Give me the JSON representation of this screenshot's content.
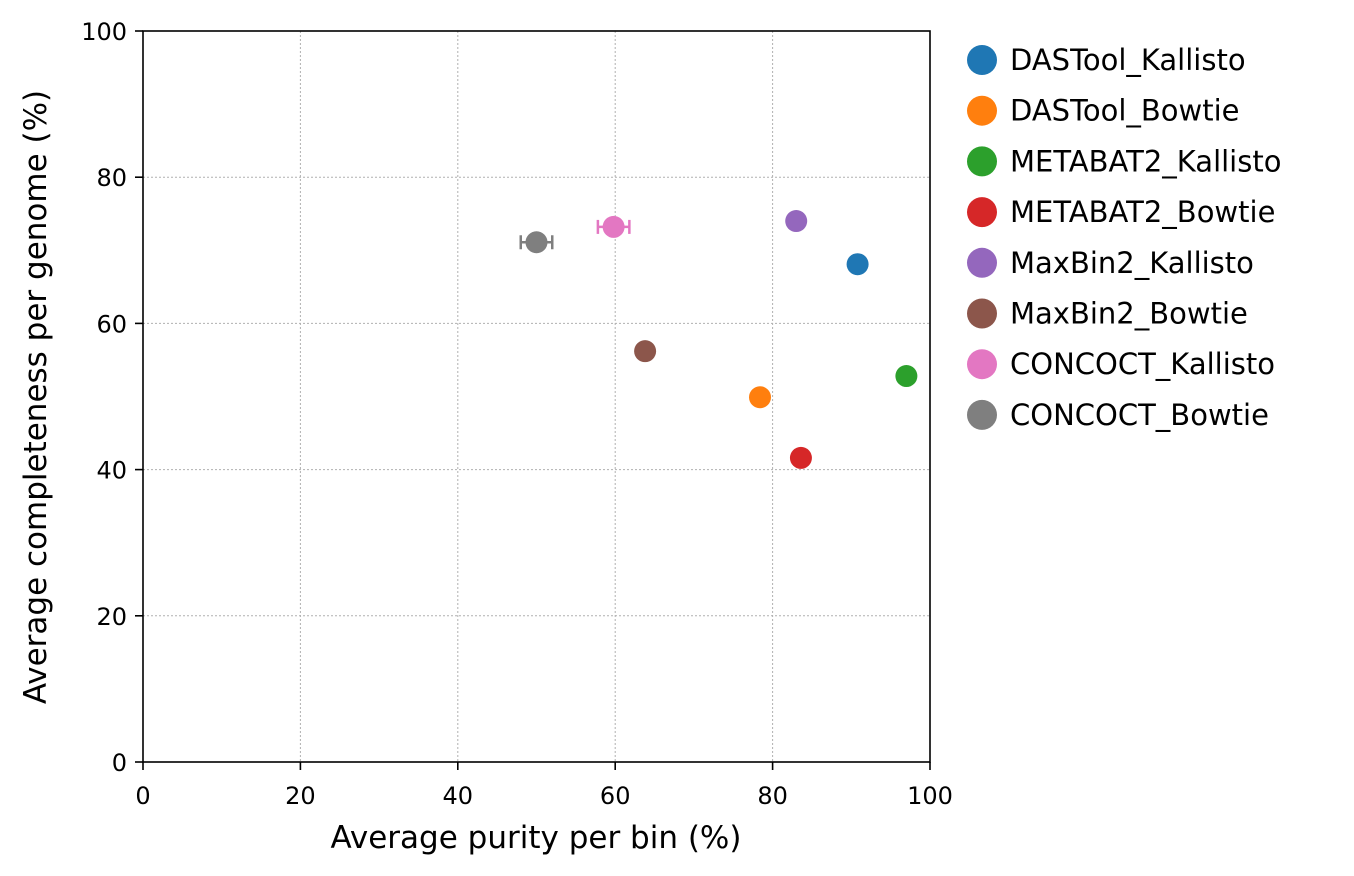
{
  "chart_data": {
    "type": "scatter",
    "title": "",
    "xlabel": "Average purity per bin (%)",
    "ylabel": "Average completeness per genome (%)",
    "xlim": [
      0,
      100
    ],
    "ylim": [
      0,
      100
    ],
    "xticks": [
      0,
      20,
      40,
      60,
      80,
      100
    ],
    "yticks": [
      0,
      20,
      40,
      60,
      80,
      100
    ],
    "grid": true,
    "legend_position": "outside-right",
    "series": [
      {
        "name": "DASTool_Kallisto",
        "color": "#1f77b4",
        "x": 90.8,
        "y": 68.1,
        "xerr": 0.4,
        "yerr": 0.3
      },
      {
        "name": "DASTool_Bowtie",
        "color": "#ff7f0e",
        "x": 78.4,
        "y": 49.9,
        "xerr": 0.9,
        "yerr": 0.6
      },
      {
        "name": "METABAT2_Kallisto",
        "color": "#2ca02c",
        "x": 97.0,
        "y": 52.8,
        "xerr": 0.3,
        "yerr": 0.3
      },
      {
        "name": "METABAT2_Bowtie",
        "color": "#d62728",
        "x": 83.6,
        "y": 41.6,
        "xerr": 0.9,
        "yerr": 0.6
      },
      {
        "name": "MaxBin2_Kallisto",
        "color": "#9467bd",
        "x": 83.0,
        "y": 74.0,
        "xerr": 0.4,
        "yerr": 0.3
      },
      {
        "name": "MaxBin2_Bowtie",
        "color": "#8c564b",
        "x": 63.8,
        "y": 56.2,
        "xerr": 0.9,
        "yerr": 0.6
      },
      {
        "name": "CONCOCT_Kallisto",
        "color": "#e377c2",
        "x": 59.8,
        "y": 73.2,
        "xerr": 2.0,
        "yerr": 0.4
      },
      {
        "name": "CONCOCT_Bowtie",
        "color": "#7f7f7f",
        "x": 50.0,
        "y": 71.1,
        "xerr": 2.0,
        "yerr": 0.4
      }
    ]
  }
}
